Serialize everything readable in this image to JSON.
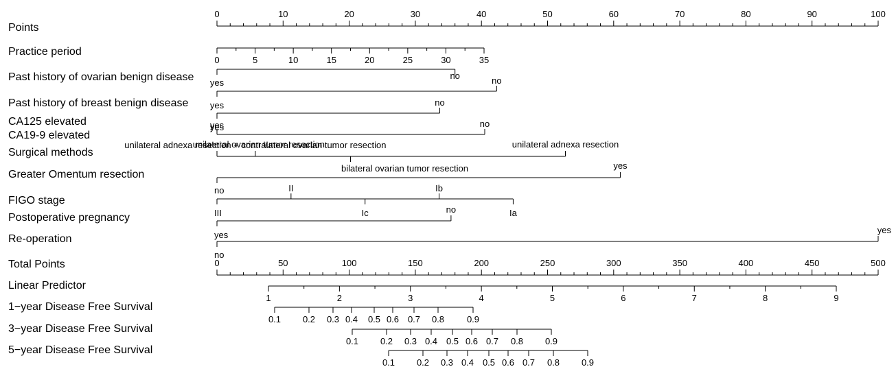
{
  "chart_data": {
    "type": "nomogram",
    "rows": [
      {
        "label": "Points",
        "kind": "scale",
        "ticks": [
          {
            "v": 0,
            "t": "0"
          },
          {
            "v": 10,
            "t": "10"
          },
          {
            "v": 20,
            "t": "20"
          },
          {
            "v": 30,
            "t": "30"
          },
          {
            "v": 40,
            "t": "40"
          },
          {
            "v": 50,
            "t": "50"
          },
          {
            "v": 60,
            "t": "60"
          },
          {
            "v": 70,
            "t": "70"
          },
          {
            "v": 80,
            "t": "80"
          },
          {
            "v": 90,
            "t": "90"
          },
          {
            "v": 100,
            "t": "100"
          }
        ]
      },
      {
        "label": "Practice period",
        "kind": "scale",
        "ticks": [
          {
            "v": 0,
            "t": "0"
          },
          {
            "v": 5,
            "t": "5"
          },
          {
            "v": 10,
            "t": "10"
          },
          {
            "v": 15,
            "t": "15"
          },
          {
            "v": 20,
            "t": "20"
          },
          {
            "v": 25,
            "t": "25"
          },
          {
            "v": 30,
            "t": "30"
          },
          {
            "v": 35,
            "t": "35"
          }
        ]
      },
      {
        "label": "Past history of ovarian benign disease",
        "kind": "cat",
        "ticks": [
          {
            "t": "no",
            "pts": 36
          },
          {
            "t": "yes",
            "pts": 0
          }
        ]
      },
      {
        "label": "Past history of breast benign disease",
        "kind": "cat",
        "ticks": [
          {
            "t": "no",
            "pts": 42.3
          },
          {
            "t": "yes",
            "pts": 0
          }
        ]
      },
      {
        "label": "CA125 elevated",
        "kind": "cat",
        "ticks": [
          {
            "t": "no",
            "pts": 33.7
          },
          {
            "t": "yes",
            "pts": 0
          }
        ]
      },
      {
        "label": "CA19-9 elevated",
        "kind": "cat",
        "ticks": [
          {
            "t": "no",
            "pts": 40.5
          },
          {
            "t": "yes",
            "pts": 0
          }
        ]
      },
      {
        "label": "Surgical methods",
        "kind": "cat",
        "ticks": [
          {
            "t": "unilateral adnexa resection + contralateral ovarian tumor resection",
            "pts": 5.8
          },
          {
            "t": "unilateral adnexa resection",
            "pts": 52.7
          },
          {
            "t": "unilateral ovarian tumor resection",
            "pts": 0
          },
          {
            "t": "bilateral ovarian tumor resection",
            "pts": 20.2
          }
        ]
      },
      {
        "label": "Greater Omentum resection",
        "kind": "cat",
        "ticks": [
          {
            "t": "yes",
            "pts": 61
          },
          {
            "t": "no",
            "pts": 0
          }
        ]
      },
      {
        "label": "FIGO stage",
        "kind": "cat",
        "ticks": [
          {
            "t": "II",
            "pts": 11.2
          },
          {
            "t": "Ib",
            "pts": 33.6
          },
          {
            "t": "III",
            "pts": 0
          },
          {
            "t": "Ic",
            "pts": 22.4
          },
          {
            "t": "Ia",
            "pts": 44.8
          }
        ]
      },
      {
        "label": "Postoperative pregnancy",
        "kind": "cat",
        "ticks": [
          {
            "t": "no",
            "pts": 35.4
          },
          {
            "t": "yes",
            "pts": 0
          }
        ]
      },
      {
        "label": "Re-operation",
        "kind": "cat",
        "ticks": [
          {
            "t": "yes",
            "pts": 100
          },
          {
            "t": "no",
            "pts": 0
          }
        ]
      },
      {
        "label": "Total Points",
        "kind": "scale",
        "ticks": [
          {
            "v": 0,
            "t": "0"
          },
          {
            "v": 50,
            "t": "50"
          },
          {
            "v": 100,
            "t": "100"
          },
          {
            "v": 150,
            "t": "150"
          },
          {
            "v": 200,
            "t": "200"
          },
          {
            "v": 250,
            "t": "250"
          },
          {
            "v": 300,
            "t": "300"
          },
          {
            "v": 350,
            "t": "350"
          },
          {
            "v": 400,
            "t": "400"
          },
          {
            "v": 450,
            "t": "450"
          },
          {
            "v": 500,
            "t": "500"
          }
        ]
      },
      {
        "label": "Linear Predictor",
        "kind": "scale",
        "ticks": [
          {
            "v": 1,
            "t": "1"
          },
          {
            "v": 2,
            "t": "2"
          },
          {
            "v": 3,
            "t": "3"
          },
          {
            "v": 4,
            "t": "4"
          },
          {
            "v": 5,
            "t": "5"
          },
          {
            "v": 6,
            "t": "6"
          },
          {
            "v": 7,
            "t": "7"
          },
          {
            "v": 8,
            "t": "8"
          },
          {
            "v": 9,
            "t": "9"
          }
        ]
      },
      {
        "label": "1−year Disease Free Survival",
        "kind": "scale",
        "ticks": [
          {
            "v": 0.1,
            "t": "0.1"
          },
          {
            "v": 0.2,
            "t": "0.2"
          },
          {
            "v": 0.3,
            "t": "0.3"
          },
          {
            "v": 0.4,
            "t": "0.4"
          },
          {
            "v": 0.5,
            "t": "0.5"
          },
          {
            "v": 0.6,
            "t": "0.6"
          },
          {
            "v": 0.7,
            "t": "0.7"
          },
          {
            "v": 0.8,
            "t": "0.8"
          },
          {
            "v": 0.9,
            "t": "0.9"
          }
        ]
      },
      {
        "label": "3−year Disease Free Survival",
        "kind": "scale",
        "ticks": [
          {
            "v": 0.1,
            "t": "0.1"
          },
          {
            "v": 0.2,
            "t": "0.2"
          },
          {
            "v": 0.3,
            "t": "0.3"
          },
          {
            "v": 0.4,
            "t": "0.4"
          },
          {
            "v": 0.5,
            "t": "0.5"
          },
          {
            "v": 0.6,
            "t": "0.6"
          },
          {
            "v": 0.7,
            "t": "0.7"
          },
          {
            "v": 0.8,
            "t": "0.8"
          },
          {
            "v": 0.9,
            "t": "0.9"
          }
        ]
      },
      {
        "label": "5−year Disease Free Survival",
        "kind": "scale",
        "ticks": [
          {
            "v": 0.1,
            "t": "0.1"
          },
          {
            "v": 0.2,
            "t": "0.2"
          },
          {
            "v": 0.3,
            "t": "0.3"
          },
          {
            "v": 0.4,
            "t": "0.4"
          },
          {
            "v": 0.5,
            "t": "0.5"
          },
          {
            "v": 0.6,
            "t": "0.6"
          },
          {
            "v": 0.7,
            "t": "0.7"
          },
          {
            "v": 0.8,
            "t": "0.8"
          },
          {
            "v": 0.9,
            "t": "0.9"
          }
        ]
      }
    ]
  }
}
